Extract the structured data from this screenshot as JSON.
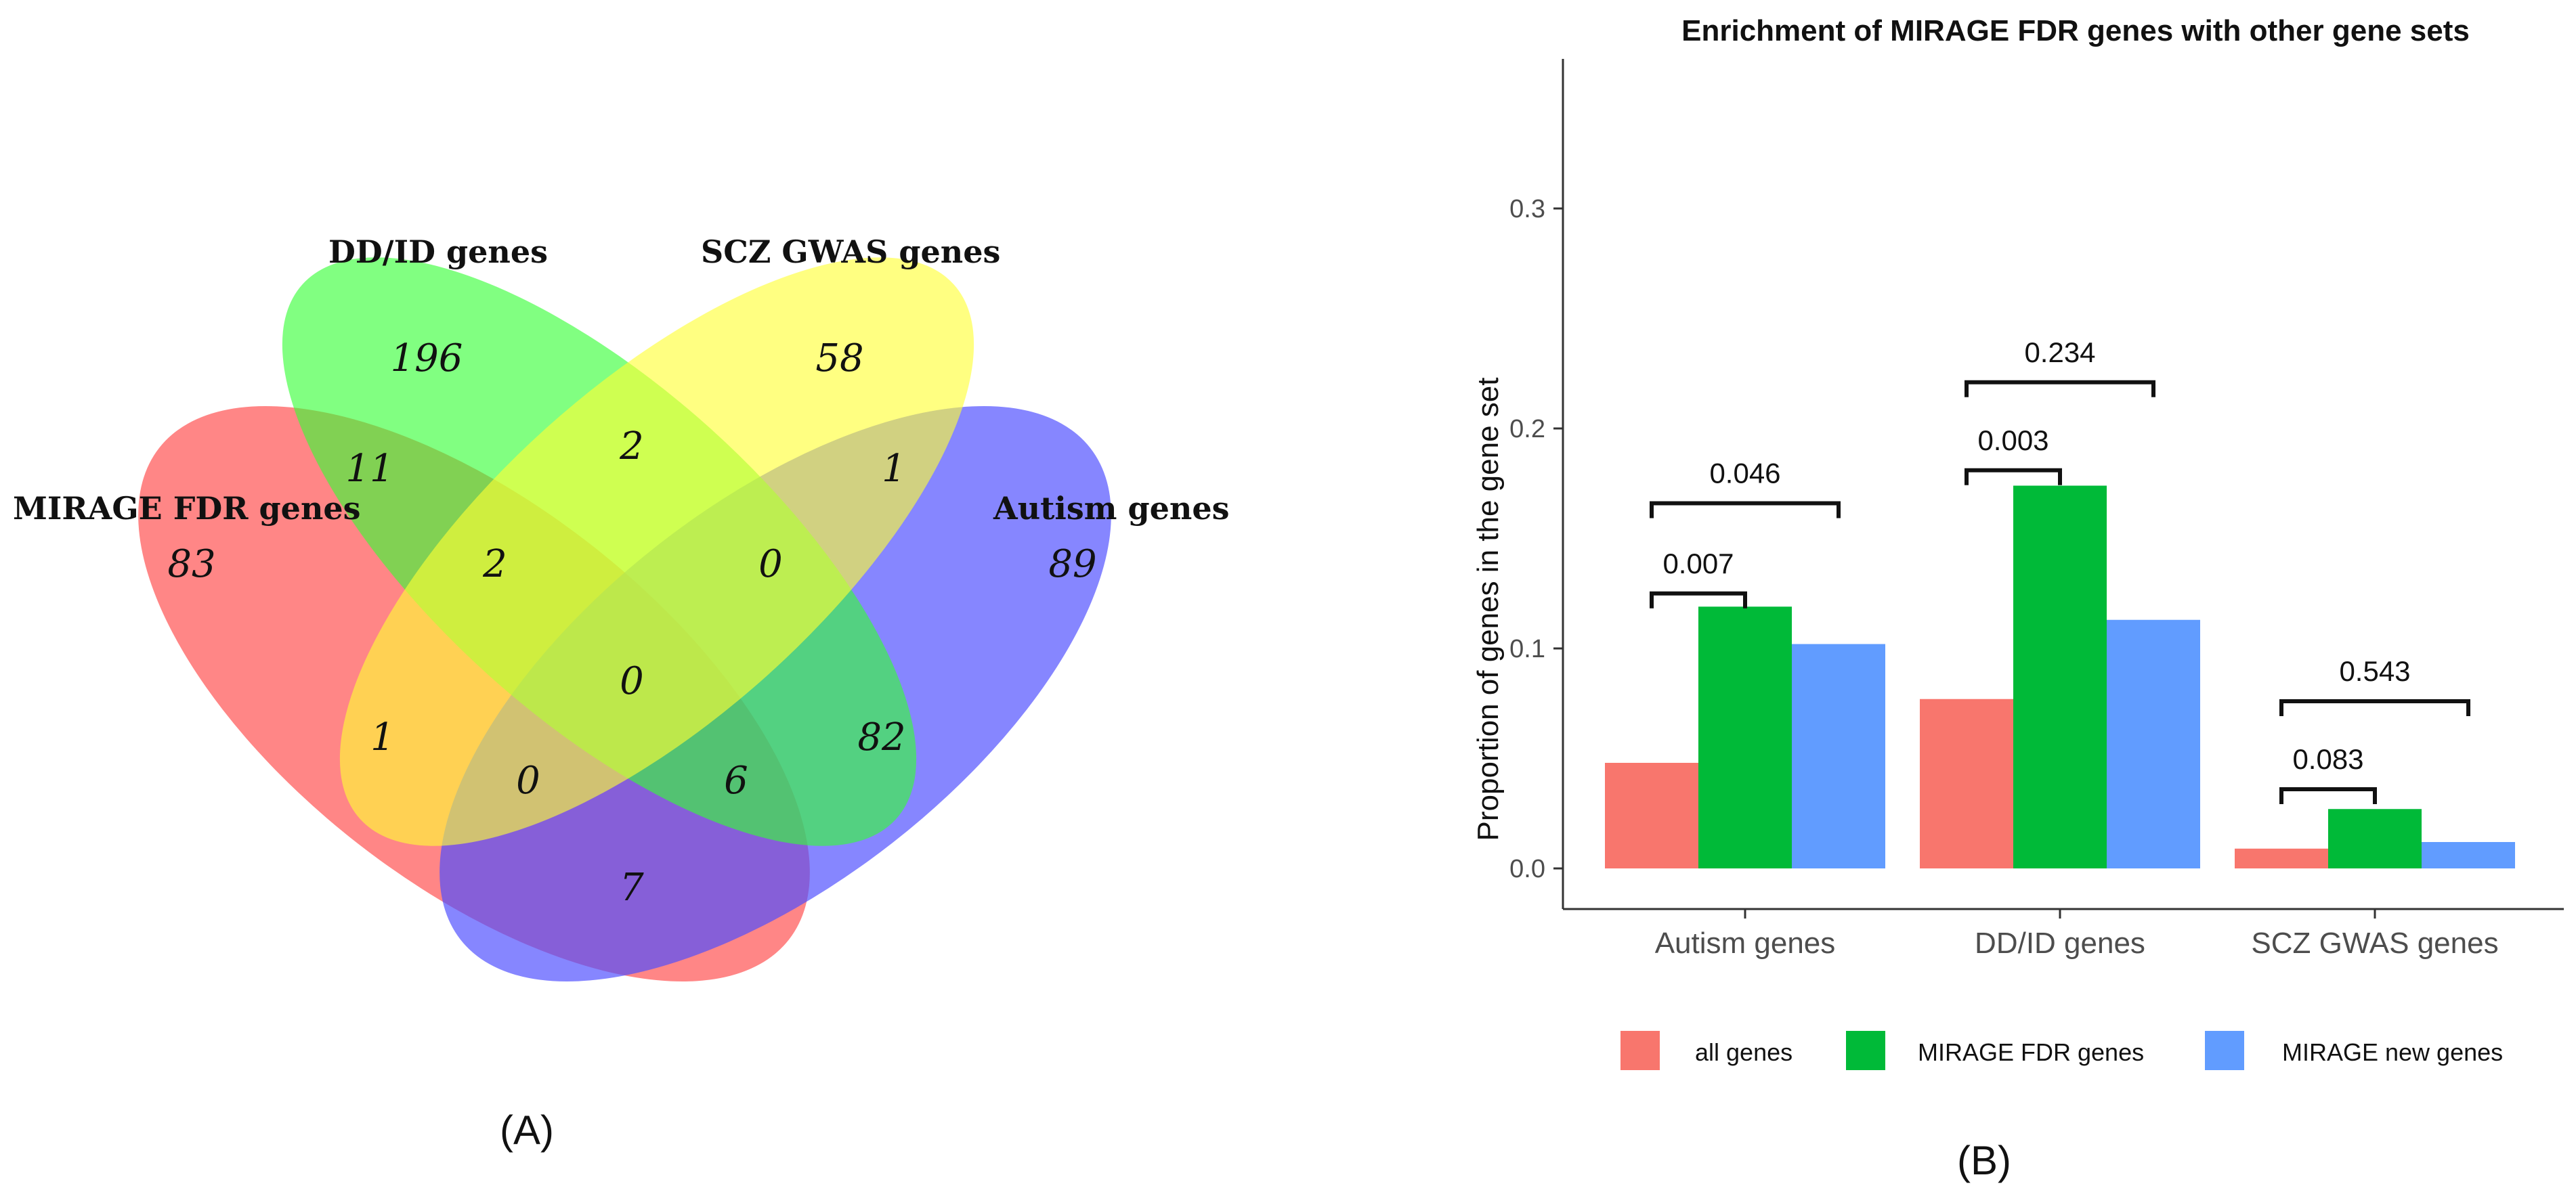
{
  "figure": {
    "panel_a_label": "(A)",
    "panel_b_label": "(B)"
  },
  "venn": {
    "sets": [
      {
        "name": "MIRAGE FDR genes",
        "color": "#ff4d4d"
      },
      {
        "name": "DD/ID genes",
        "color": "#33ff33"
      },
      {
        "name": "SCZ GWAS genes",
        "color": "#ffff33"
      },
      {
        "name": "Autism genes",
        "color": "#4d4dff"
      }
    ],
    "regions": {
      "mirage_only": "83",
      "ddid_only": "196",
      "scz_only": "58",
      "autism_only": "89",
      "mirage_ddid": "11",
      "ddid_scz": "2",
      "scz_autism": "1",
      "mirage_ddid_scz": "2",
      "ddid_scz_autism": "0",
      "all_four": "0",
      "mirage_scz": "1",
      "ddid_autism": "82",
      "mirage_scz_autism": "0",
      "mirage_ddid_autism": "6",
      "mirage_autism": "7"
    }
  },
  "chart_data": {
    "type": "bar",
    "title": "Enrichment of MIRAGE FDR genes with other gene sets",
    "xlabel": "",
    "ylabel": "Proportion of genes in the gene set",
    "ylim": [
      0,
      0.37
    ],
    "yticks": [
      0.0,
      0.1,
      0.2,
      0.3
    ],
    "ytick_labels": [
      "0.0",
      "0.1",
      "0.2",
      "0.3"
    ],
    "categories": [
      "Autism genes",
      "DD/ID genes",
      "SCZ GWAS genes"
    ],
    "series": [
      {
        "name": "all genes",
        "color": "#f8766d",
        "values": [
          0.048,
          0.077,
          0.009
        ]
      },
      {
        "name": "MIRAGE FDR genes",
        "color": "#00ba38",
        "values": [
          0.119,
          0.174,
          0.027
        ]
      },
      {
        "name": "MIRAGE new genes",
        "color": "#619cff",
        "values": [
          0.102,
          0.113,
          0.012
        ]
      }
    ],
    "annotations": [
      {
        "category": 0,
        "from": 0,
        "to": 1,
        "y": 0.125,
        "label": "0.007"
      },
      {
        "category": 0,
        "from": 0,
        "to": 2,
        "y": 0.166,
        "label": "0.046"
      },
      {
        "category": 1,
        "from": 0,
        "to": 1,
        "y": 0.181,
        "label": "0.003"
      },
      {
        "category": 1,
        "from": 0,
        "to": 2,
        "y": 0.221,
        "label": "0.234"
      },
      {
        "category": 2,
        "from": 0,
        "to": 1,
        "y": 0.036,
        "label": "0.083"
      },
      {
        "category": 2,
        "from": 0,
        "to": 2,
        "y": 0.076,
        "label": "0.543"
      }
    ],
    "legend": [
      "all genes",
      "MIRAGE FDR genes",
      "MIRAGE new genes"
    ]
  }
}
